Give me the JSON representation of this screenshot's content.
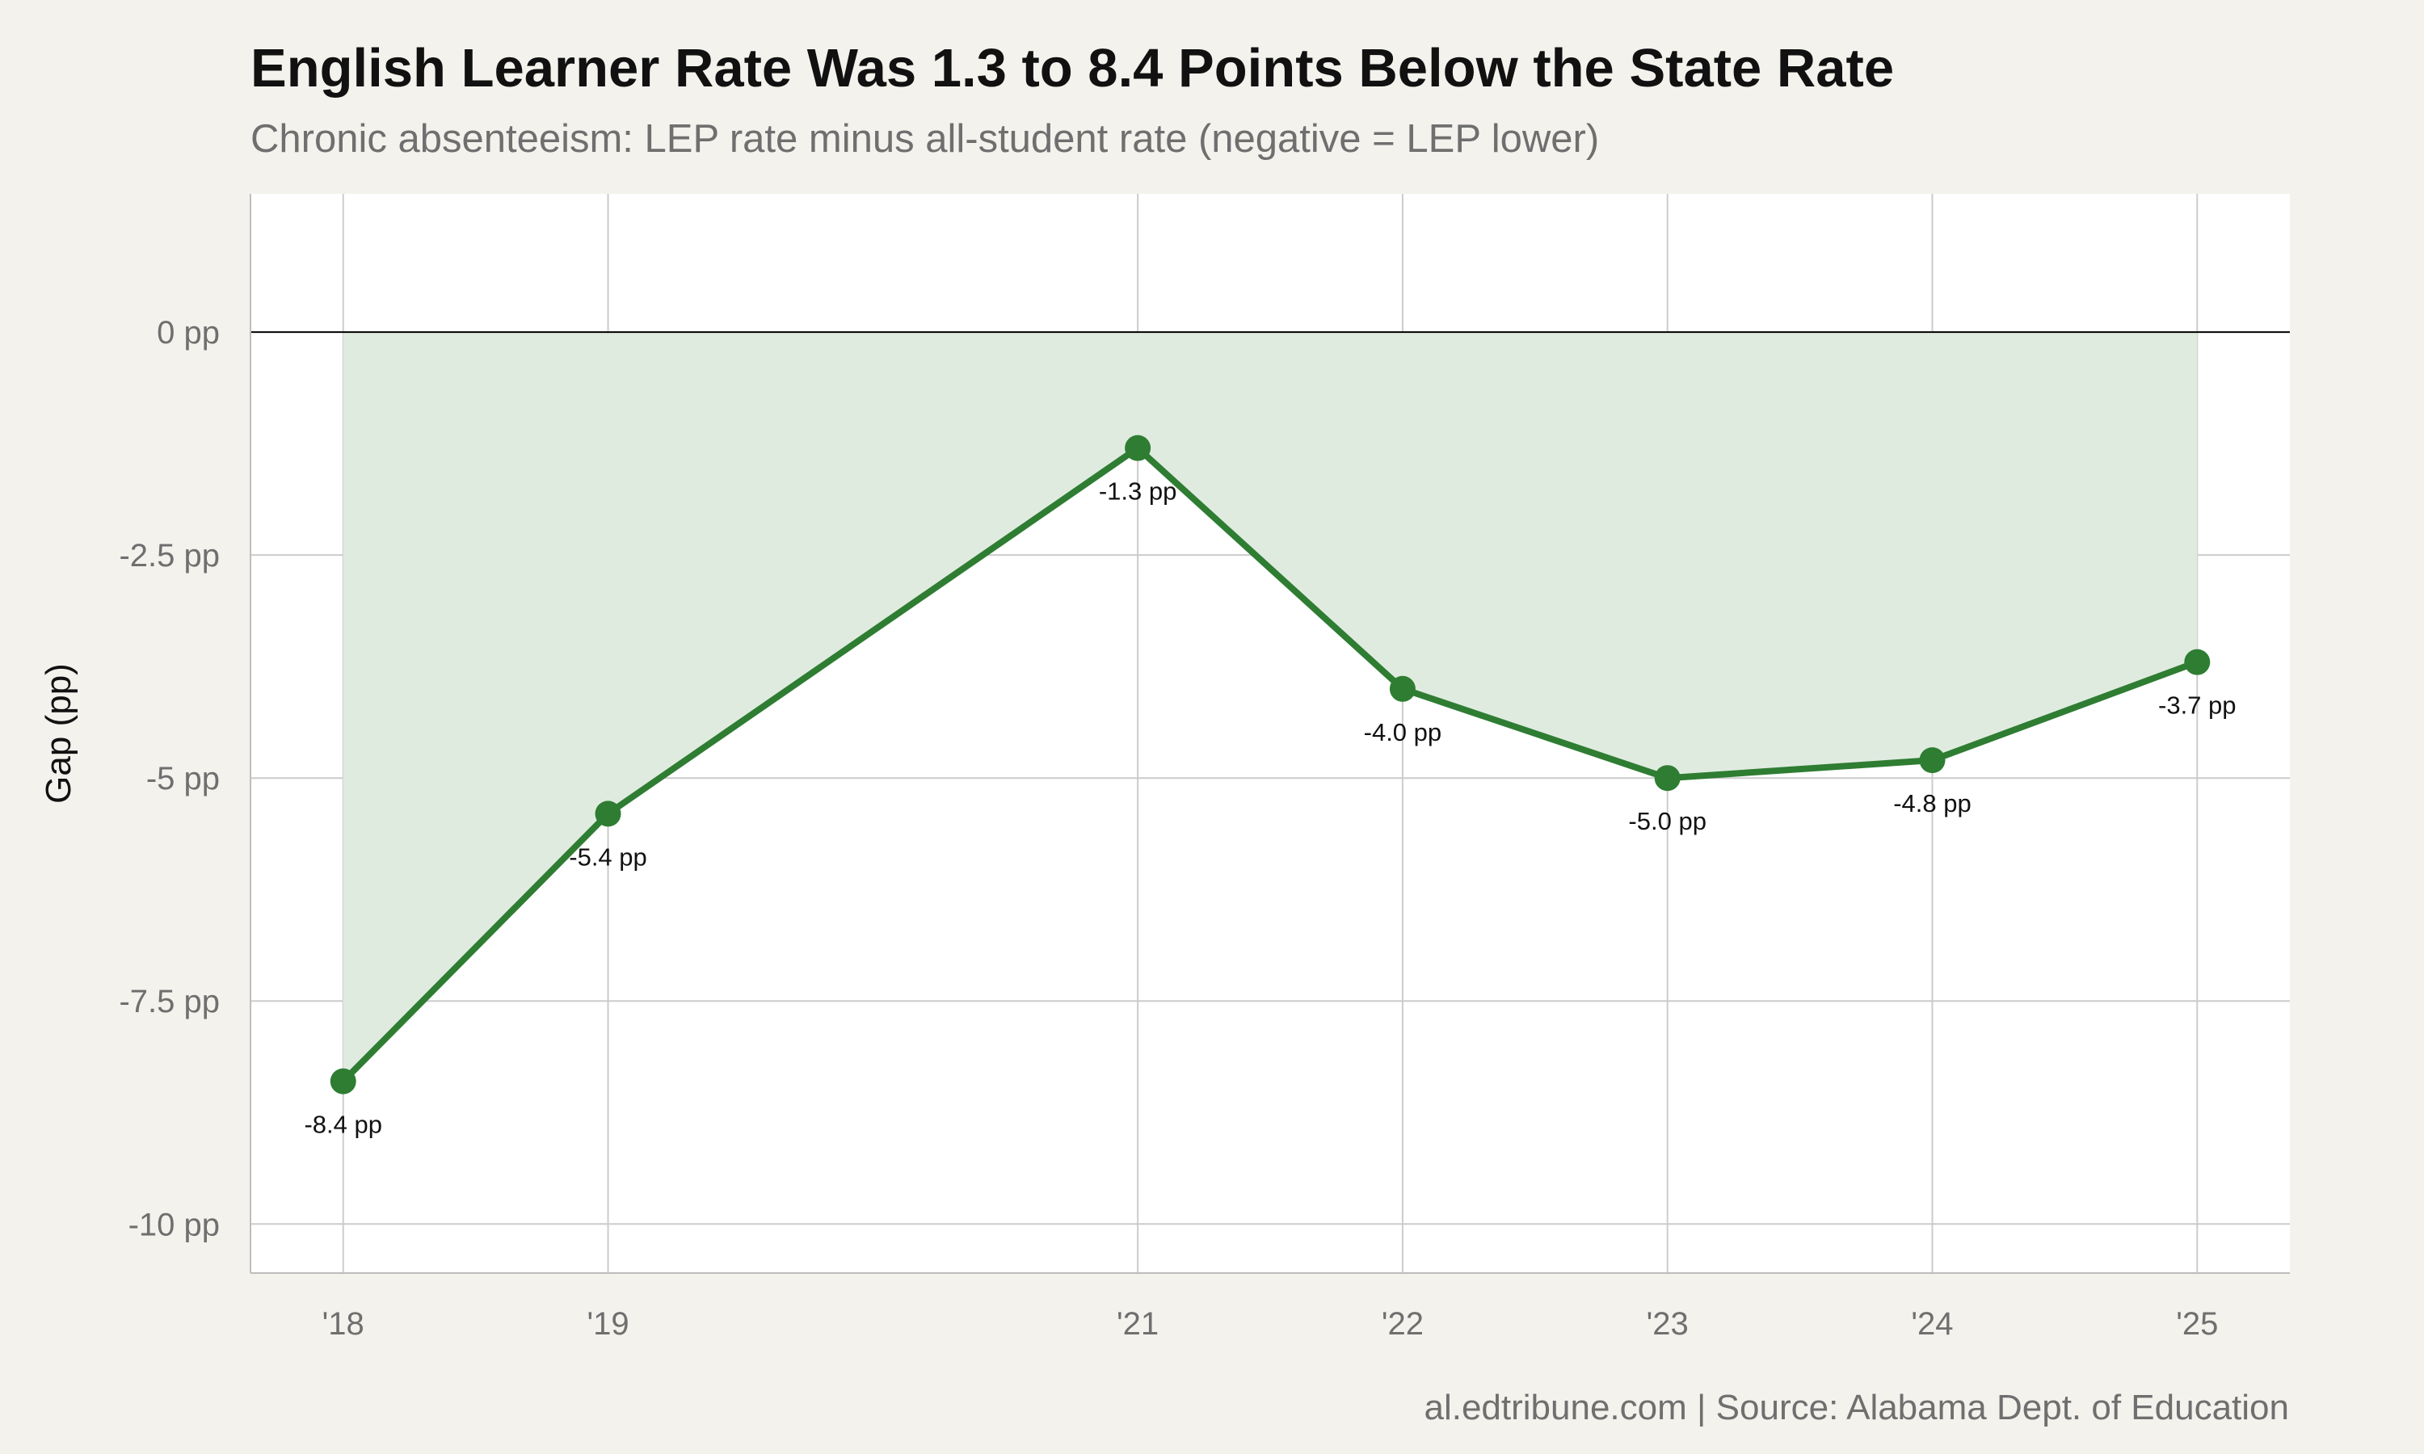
{
  "title": "English Learner Rate Was 1.3 to 8.4 Points Below the State Rate",
  "subtitle": "Chronic absenteeism: LEP rate minus all-student rate (negative = LEP lower)",
  "caption": "al.edtribune.com | Source: Alabama Dept. of Education",
  "chart_data": {
    "type": "area",
    "x": [
      2018,
      2019,
      2021,
      2022,
      2023,
      2024,
      2025
    ],
    "x_tick_labels": [
      "'18",
      "'19",
      "'21",
      "'22",
      "'23",
      "'24",
      "'25"
    ],
    "values": [
      -8.4,
      -5.4,
      -1.3,
      -4.0,
      -5.0,
      -4.8,
      -3.7
    ],
    "point_labels": [
      "-8.4 pp",
      "-5.4 pp",
      "-1.3 pp",
      "-4.0 pp",
      "-5.0 pp",
      "-4.8 pp",
      "-3.7 pp"
    ],
    "y_ticks": [
      0,
      -2.5,
      -5,
      -7.5,
      -10
    ],
    "y_tick_labels": [
      "0 pp",
      "-2.5 pp",
      "-5 pp",
      "-7.5 pp",
      "-10 pp"
    ],
    "ylabel": "Gap (pp)",
    "xlabel": "",
    "xlim": [
      2017.65,
      2025.35
    ],
    "ylim": [
      -10.55,
      1.55
    ],
    "reference_line": 0,
    "grid": true,
    "colors": {
      "line": "#2e7d32",
      "fill": "#e0ebe0",
      "grid": "#cccccc",
      "background": "#f4f2ed",
      "plot_background": "#ffffff"
    }
  }
}
